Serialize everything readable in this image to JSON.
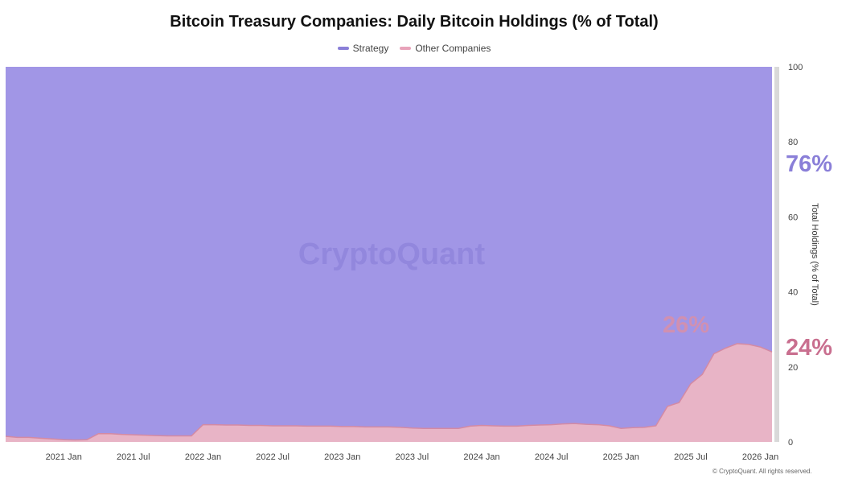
{
  "colors": {
    "strategy": "#a196e6",
    "other": "#e8b4c6",
    "strategy_text": "#8a7fd8",
    "other_text": "#c96f8f"
  },
  "chart_data": {
    "type": "area",
    "title": "Bitcoin Treasury Companies: Daily Bitcoin Holdings (% of Total)",
    "ylabel": "Total Holdings (% of Total)",
    "ylim": [
      0,
      100
    ],
    "yticks": [
      0,
      20,
      40,
      60,
      80,
      100
    ],
    "stacked": true,
    "grid": false,
    "legend_position": "top-center",
    "x_tick_labels": [
      "2021 Jan",
      "2021 Jul",
      "2022 Jan",
      "2022 Jul",
      "2023 Jan",
      "2023 Jul",
      "2024 Jan",
      "2024 Jul",
      "2025 Jan",
      "2025 Jul",
      "2026 Jan"
    ],
    "x": [
      "2020-08",
      "2020-09",
      "2020-10",
      "2020-11",
      "2020-12",
      "2021-01",
      "2021-02",
      "2021-03",
      "2021-04",
      "2021-05",
      "2021-06",
      "2021-07",
      "2021-08",
      "2021-09",
      "2021-10",
      "2021-11",
      "2021-12",
      "2022-01",
      "2022-02",
      "2022-03",
      "2022-04",
      "2022-05",
      "2022-06",
      "2022-07",
      "2022-08",
      "2022-09",
      "2022-10",
      "2022-11",
      "2022-12",
      "2023-01",
      "2023-02",
      "2023-03",
      "2023-04",
      "2023-05",
      "2023-06",
      "2023-07",
      "2023-08",
      "2023-09",
      "2023-10",
      "2023-11",
      "2023-12",
      "2024-01",
      "2024-02",
      "2024-03",
      "2024-04",
      "2024-05",
      "2024-06",
      "2024-07",
      "2024-08",
      "2024-09",
      "2024-10",
      "2024-11",
      "2024-12",
      "2025-01",
      "2025-02",
      "2025-03",
      "2025-04",
      "2025-05",
      "2025-06",
      "2025-07",
      "2025-08",
      "2025-09",
      "2025-10",
      "2025-11",
      "2025-12",
      "2026-01",
      "2026-02"
    ],
    "series": [
      {
        "name": "Other Companies",
        "values": [
          1.5,
          1.2,
          1.2,
          1.0,
          0.8,
          0.6,
          0.5,
          0.6,
          2.2,
          2.2,
          2.0,
          1.9,
          1.8,
          1.7,
          1.6,
          1.6,
          1.6,
          4.6,
          4.6,
          4.5,
          4.5,
          4.4,
          4.4,
          4.3,
          4.3,
          4.3,
          4.2,
          4.2,
          4.2,
          4.1,
          4.1,
          4.0,
          4.0,
          4.0,
          3.9,
          3.7,
          3.6,
          3.6,
          3.6,
          3.6,
          4.2,
          4.4,
          4.3,
          4.2,
          4.2,
          4.4,
          4.5,
          4.6,
          4.8,
          4.9,
          4.7,
          4.6,
          4.3,
          3.6,
          3.8,
          3.9,
          4.3,
          9.5,
          10.5,
          15.5,
          18.0,
          23.5,
          25.0,
          26.2,
          26.0,
          25.3,
          24.0
        ]
      },
      {
        "name": "Strategy",
        "values": [
          98.5,
          98.8,
          98.8,
          99.0,
          99.2,
          99.4,
          99.5,
          99.4,
          97.8,
          97.8,
          98.0,
          98.1,
          98.2,
          98.3,
          98.4,
          98.4,
          98.4,
          95.4,
          95.4,
          95.5,
          95.5,
          95.6,
          95.6,
          95.7,
          95.7,
          95.7,
          95.8,
          95.8,
          95.8,
          95.9,
          95.9,
          96.0,
          96.0,
          96.0,
          96.1,
          96.3,
          96.4,
          96.4,
          96.4,
          96.4,
          95.8,
          95.6,
          95.7,
          95.8,
          95.8,
          95.6,
          95.5,
          95.4,
          95.2,
          95.1,
          95.3,
          95.4,
          95.7,
          96.4,
          96.2,
          96.1,
          95.7,
          90.5,
          89.5,
          84.5,
          82.0,
          76.5,
          75.0,
          73.8,
          74.0,
          74.7,
          76.0
        ]
      }
    ],
    "annotations": [
      "76%",
      "26%",
      "24%"
    ],
    "watermark": "CryptoQuant"
  },
  "footer": {
    "copyright": "© CryptoQuant. All rights reserved."
  }
}
